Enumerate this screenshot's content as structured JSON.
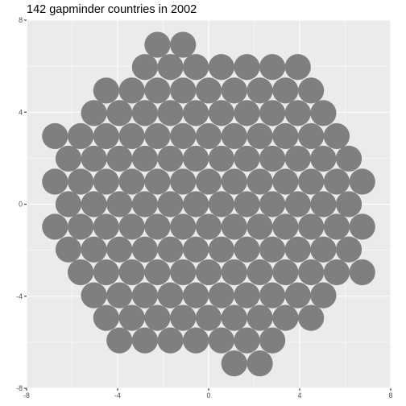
{
  "title": "142 gapminder countries in 2002",
  "chart_data": {
    "type": "scatter",
    "mark": "circle",
    "title": "142 gapminder countries in 2002",
    "xlabel": "",
    "ylabel": "",
    "xlim": [
      -8,
      8
    ],
    "ylim": [
      -8,
      8
    ],
    "x_ticks": [
      -8,
      -4,
      0,
      4,
      8
    ],
    "y_ticks": [
      -8,
      -4,
      0,
      4,
      8
    ],
    "x_tick_labels": [
      "-8",
      "-4",
      "0",
      "4",
      "8"
    ],
    "y_tick_labels": [
      "-8",
      "-4",
      "0",
      "4",
      "8"
    ],
    "grid": true,
    "panel_background": "#ebebeb",
    "grid_color": "#ffffff",
    "circle_color": "#7f7f7f",
    "circle_radius": 0.57,
    "rows": [
      {
        "y": 6.93,
        "x": [
          -2.25,
          -1.125
        ]
      },
      {
        "y": 5.96,
        "x": [
          -2.8,
          -1.68,
          -0.56,
          0.56,
          1.68,
          2.8,
          3.92
        ]
      },
      {
        "y": 4.94,
        "x": [
          -4.5,
          -3.375,
          -2.25,
          -1.125,
          0,
          1.125,
          2.25,
          3.375,
          4.5
        ]
      },
      {
        "y": 3.96,
        "x": [
          -5.04,
          -3.92,
          -2.8,
          -1.68,
          -0.56,
          0.56,
          1.68,
          2.8,
          3.92,
          5.04
        ]
      },
      {
        "y": 2.96,
        "x": [
          -6.75,
          -5.625,
          -4.5,
          -3.375,
          -2.25,
          -1.125,
          0,
          1.125,
          2.25,
          3.375,
          4.5,
          5.625
        ]
      },
      {
        "y": 1.98,
        "x": [
          -6.16,
          -5.04,
          -3.92,
          -2.8,
          -1.68,
          -0.56,
          0.56,
          1.68,
          2.8,
          3.92,
          5.04,
          6.16
        ]
      },
      {
        "y": 0.98,
        "x": [
          -6.75,
          -5.625,
          -4.5,
          -3.375,
          -2.25,
          -1.125,
          0,
          1.125,
          2.25,
          3.375,
          4.5,
          5.625,
          6.75
        ]
      },
      {
        "y": 0.0,
        "x": [
          -6.16,
          -5.04,
          -3.92,
          -2.8,
          -1.68,
          -0.56,
          0.56,
          1.68,
          2.8,
          3.92,
          5.04,
          6.16
        ]
      },
      {
        "y": -0.98,
        "x": [
          -6.75,
          -5.625,
          -4.5,
          -3.375,
          -2.25,
          -1.125,
          0,
          1.125,
          2.25,
          3.375,
          4.5,
          5.625,
          6.75
        ]
      },
      {
        "y": -1.97,
        "x": [
          -6.16,
          -5.04,
          -3.92,
          -2.8,
          -1.68,
          -0.56,
          0.56,
          1.68,
          2.8,
          3.92,
          5.04,
          6.16
        ]
      },
      {
        "y": -2.96,
        "x": [
          -5.625,
          -4.5,
          -3.375,
          -2.25,
          -1.125,
          0,
          1.125,
          2.25,
          3.375,
          4.5,
          5.625,
          6.75
        ]
      },
      {
        "y": -3.96,
        "x": [
          -5.04,
          -3.92,
          -2.8,
          -1.68,
          -0.56,
          0.56,
          1.68,
          2.8,
          3.92,
          5.04
        ]
      },
      {
        "y": -4.94,
        "x": [
          -4.5,
          -3.375,
          -2.25,
          -1.125,
          0,
          1.125,
          2.25,
          3.375,
          4.5
        ]
      },
      {
        "y": -5.92,
        "x": [
          -3.92,
          -2.8,
          -1.68,
          -0.56,
          0.56,
          1.68,
          2.8
        ]
      },
      {
        "y": -6.92,
        "x": [
          1.125,
          2.25
        ]
      }
    ]
  }
}
